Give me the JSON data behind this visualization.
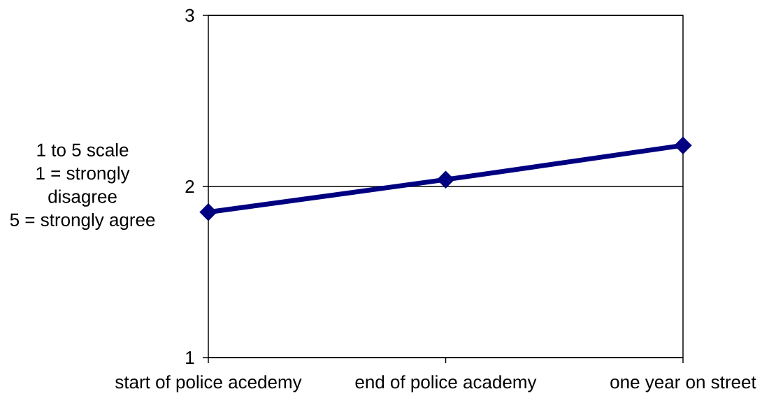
{
  "chart_data": {
    "type": "line",
    "ylabel": "1 to 5 scale\n1 = strongly\ndisagree\n5 = strongly agree",
    "categories": [
      "start of police acedemy",
      "end of police academy",
      "one year on street"
    ],
    "series": [
      {
        "color": "#000080",
        "values": [
          1.85,
          2.04,
          2.24
        ]
      }
    ],
    "ylim": [
      1,
      3
    ],
    "yticks": [
      1,
      2,
      3
    ],
    "grid": "y",
    "marker": "diamond",
    "line_style": "solid"
  }
}
